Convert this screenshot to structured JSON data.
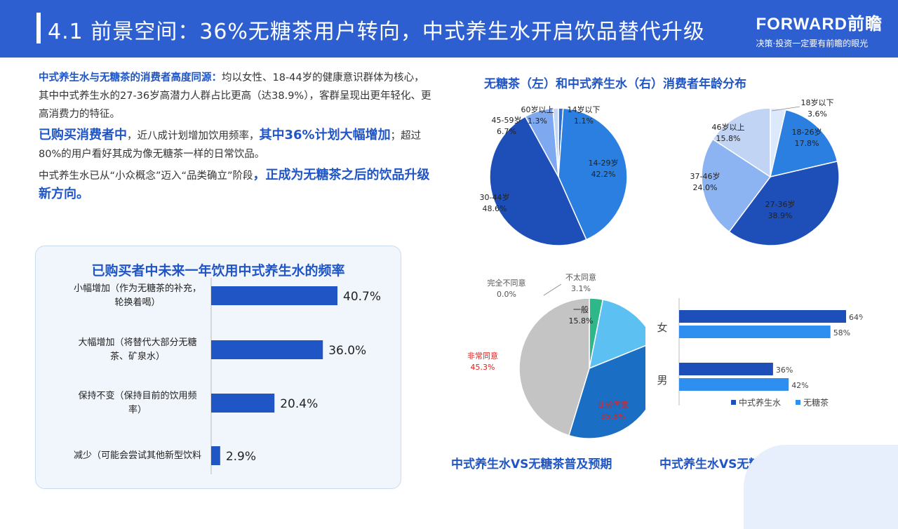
{
  "header": {
    "title": "4.1 前景空间：36%无糖茶用户转向，中式养生水开启饮品替代升级",
    "brand_logo": "FORWARD前瞻",
    "brand_tagline": "决策·投资一定要有前瞻的眼光"
  },
  "intro": {
    "p1_hl": "中式养生水与无糖茶的消费者高度同源：",
    "p1_text": "均以女性、18-44岁的健康意识群体为核心，其中中式养生水的27-36岁高潜力人群占比更高（达38.9%），客群呈现出更年轻化、更高消费力的特征。",
    "p2_hl1": "已购买消费者中",
    "p2_text1": "，近八成计划增加饮用频率，",
    "p2_hl2": "其中36%计划大幅增加",
    "p2_text2": "；超过80%的用户看好其成为像无糖茶一样的日常饮品。",
    "p3_text": "中式养生水已从“小众概念”迈入“品类确立”阶段",
    "p3_hl": "，正成为无糖茶之后的饮品升级新方向。"
  },
  "chart_data": [
    {
      "id": "freq",
      "type": "bar",
      "orientation": "horizontal",
      "title": "已购买者中未来一年饮用中式养生水的频率",
      "categories": [
        "小幅增加（作为无糖茶的补充，轮换着喝）",
        "大幅增加（将替代大部分无糖茶、矿泉水）",
        "保持不变（保持目前的饮用频率）",
        "减少（可能会尝试其他新型饮料"
      ],
      "category_lines": [
        [
          "小幅增加（作为无糖茶的补充，",
          "轮换着喝）"
        ],
        [
          "大幅增加（将替代大部分无糖",
          "茶、矿泉水）"
        ],
        [
          "保持不变（保持目前的饮用频",
          "率）"
        ],
        [
          "减少（可能会尝试其他新型饮料"
        ]
      ],
      "values": [
        40.7,
        36.0,
        20.4,
        2.9
      ],
      "value_labels": [
        "40.7%",
        "36.0%",
        "20.4%",
        "2.9%"
      ],
      "color": "#1f55c4"
    },
    {
      "id": "age-tea",
      "type": "pie",
      "title": "无糖茶（左）和中式养生水（右）消费者年龄分布",
      "slices": [
        {
          "label": "14岁以下",
          "value": 1.1,
          "text": "1.1%",
          "color": "#2f6fd8"
        },
        {
          "label": "14-29岁",
          "value": 42.2,
          "text": "42.2%",
          "color": "#2b7fe0"
        },
        {
          "label": "30-44岁",
          "value": 48.6,
          "text": "48.6%",
          "color": "#1e4fb8"
        },
        {
          "label": "45-59岁",
          "value": 6.7,
          "text": "6.7%",
          "color": "#7ea8f0"
        },
        {
          "label": "60岁以上",
          "value": 1.3,
          "text": "1.3%",
          "color": "#c4d8f6"
        }
      ]
    },
    {
      "id": "age-water",
      "type": "pie",
      "slices": [
        {
          "label": "18岁以下",
          "value": 3.6,
          "text": "3.6%",
          "color": "#dbe9fb"
        },
        {
          "label": "18-26岁",
          "value": 17.8,
          "text": "17.8%",
          "color": "#2b7fe0"
        },
        {
          "label": "27-36岁",
          "value": 38.9,
          "text": "38.9%",
          "color": "#1e4fb8"
        },
        {
          "label": "37-46岁",
          "value": 24.0,
          "text": "24.0%",
          "color": "#8cb3f2"
        },
        {
          "label": "46岁以上",
          "value": 15.8,
          "text": "15.8%",
          "color": "#c1d4f4"
        }
      ]
    },
    {
      "id": "expect",
      "type": "pie",
      "title": "中式养生水VS无糖茶普及预期",
      "slices": [
        {
          "label": "完全不同意",
          "value": 0.0,
          "text": "0.0%",
          "color": "#e0e0e0"
        },
        {
          "label": "不太同意",
          "value": 3.1,
          "text": "3.1%",
          "color": "#2eb88a"
        },
        {
          "label": "一般",
          "value": 15.8,
          "text": "15.8%",
          "color": "#5cc0f2"
        },
        {
          "label": "比较同意",
          "value": 35.8,
          "text": "35.8%",
          "color": "#1a6fc4"
        },
        {
          "label": "非常同意",
          "value": 45.3,
          "text": "45.3%",
          "color": "#c4c4c4"
        }
      ]
    },
    {
      "id": "gender",
      "type": "bar",
      "orientation": "horizontal",
      "title": "中式养生水VS无糖茶消费者性别分布",
      "categories": [
        "女",
        "男"
      ],
      "series": [
        {
          "name": "中式养生水",
          "values": [
            64,
            36
          ],
          "labels": [
            "64%",
            "36%"
          ],
          "color": "#1e4fb8"
        },
        {
          "name": "无糖茶",
          "values": [
            58,
            42
          ],
          "labels": [
            "58%",
            "42%"
          ],
          "color": "#2f8ff0"
        }
      ]
    }
  ]
}
